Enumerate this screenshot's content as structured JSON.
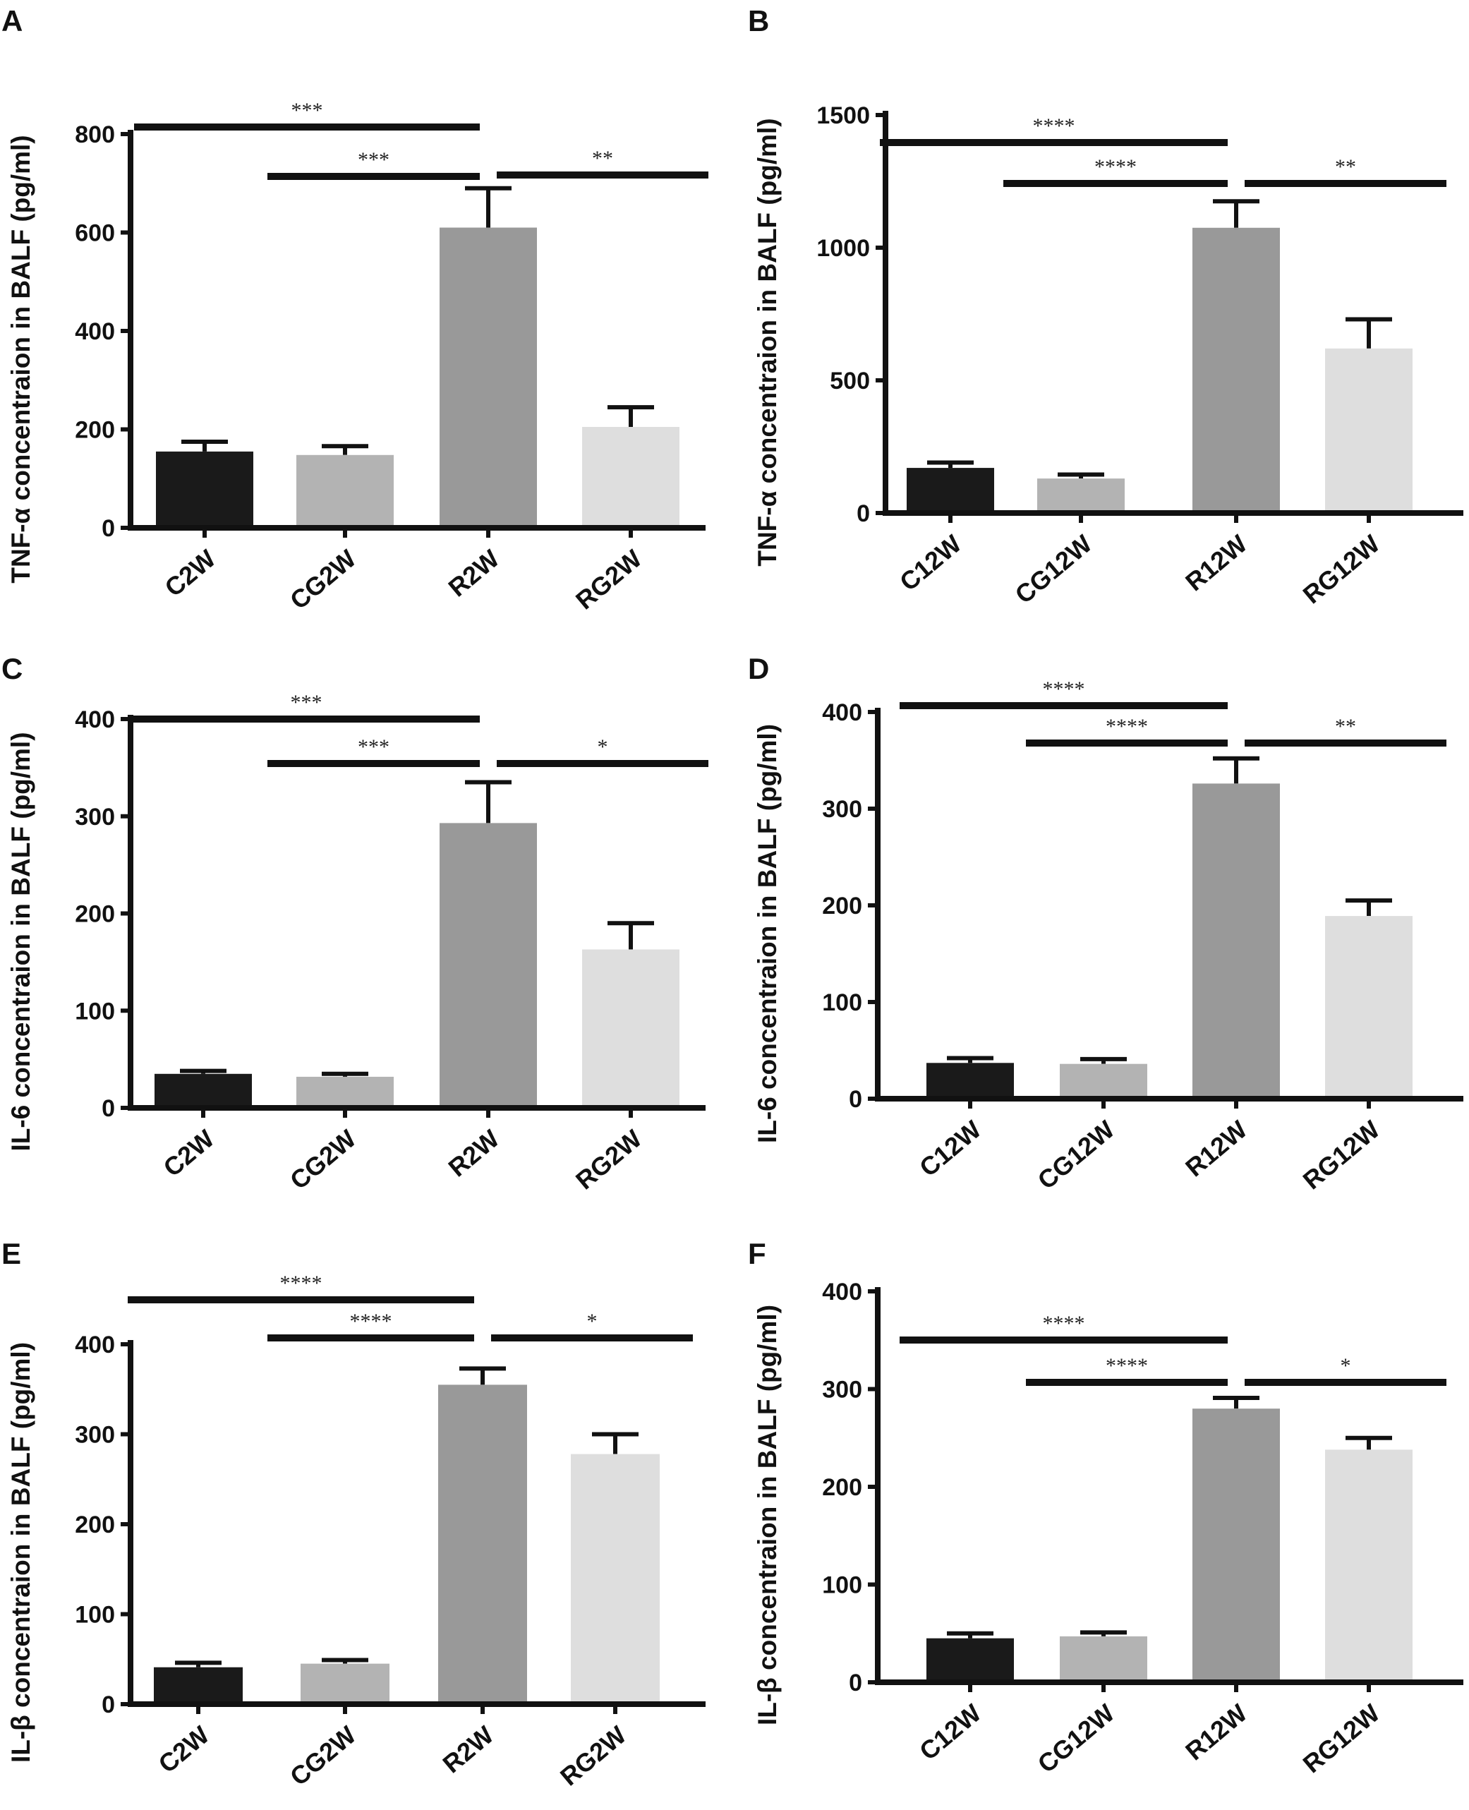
{
  "chart_data": [
    {
      "panel": "A",
      "type": "bar",
      "ylabel": "TNF-α concentraion in BALF (pg/ml)",
      "categories": [
        "C2W",
        "CG2W",
        "R2W",
        "RG2W"
      ],
      "values": [
        155,
        148,
        610,
        205
      ],
      "errors": [
        20,
        18,
        80,
        40
      ],
      "ylim": [
        0,
        800
      ],
      "yticks": [
        "0",
        "200",
        "400",
        "600",
        "800"
      ],
      "colors": [
        "#1a1a1a",
        "#b3b3b3",
        "#999999",
        "#dedede"
      ],
      "significance": [
        {
          "from": 0,
          "to": 2,
          "label": "***"
        },
        {
          "from": 1,
          "to": 2,
          "label": "***"
        },
        {
          "from": 2,
          "to": 3,
          "label": "**"
        }
      ]
    },
    {
      "panel": "B",
      "type": "bar",
      "ylabel": "TNF-α concentraion in BALF (pg/ml)",
      "categories": [
        "C12W",
        "CG12W",
        "R12W",
        "RG12W"
      ],
      "values": [
        170,
        130,
        1075,
        620
      ],
      "errors": [
        20,
        15,
        100,
        110
      ],
      "ylim": [
        0,
        1500
      ],
      "yticks": [
        "0",
        "500",
        "1000",
        "1500"
      ],
      "colors": [
        "#1a1a1a",
        "#b3b3b3",
        "#999999",
        "#dedede"
      ],
      "significance": [
        {
          "from": 0,
          "to": 2,
          "label": "****"
        },
        {
          "from": 1,
          "to": 2,
          "label": "****"
        },
        {
          "from": 2,
          "to": 3,
          "label": "**"
        }
      ]
    },
    {
      "panel": "C",
      "type": "bar",
      "ylabel": "IL-6 concentraion in BALF (pg/ml)",
      "categories": [
        "C2W",
        "CG2W",
        "R2W",
        "RG2W"
      ],
      "values": [
        35,
        32,
        293,
        163
      ],
      "errors": [
        3,
        3,
        42,
        27
      ],
      "ylim": [
        0,
        400
      ],
      "yticks": [
        "0",
        "100",
        "200",
        "300",
        "400"
      ],
      "colors": [
        "#1a1a1a",
        "#b3b3b3",
        "#999999",
        "#dedede"
      ],
      "significance": [
        {
          "from": 0,
          "to": 2,
          "label": "***"
        },
        {
          "from": 1,
          "to": 2,
          "label": "***"
        },
        {
          "from": 2,
          "to": 3,
          "label": "*"
        }
      ]
    },
    {
      "panel": "D",
      "type": "bar",
      "ylabel": "IL-6 concentraion in BALF (pg/ml)",
      "categories": [
        "C12W",
        "CG12W",
        "R12W",
        "RG12W"
      ],
      "values": [
        37,
        36,
        326,
        189
      ],
      "errors": [
        5,
        5,
        26,
        16
      ],
      "ylim": [
        0,
        400
      ],
      "yticks": [
        "0",
        "100",
        "200",
        "300",
        "400"
      ],
      "colors": [
        "#1a1a1a",
        "#b3b3b3",
        "#999999",
        "#dedede"
      ],
      "significance": [
        {
          "from": 0,
          "to": 2,
          "label": "****"
        },
        {
          "from": 1,
          "to": 2,
          "label": "****"
        },
        {
          "from": 2,
          "to": 3,
          "label": "**"
        }
      ]
    },
    {
      "panel": "E",
      "type": "bar",
      "ylabel": "IL-β concentraion in BALF (pg/ml)",
      "categories": [
        "C2W",
        "CG2W",
        "R2W",
        "RG2W"
      ],
      "values": [
        41,
        45,
        355,
        278
      ],
      "errors": [
        5,
        4,
        18,
        22
      ],
      "ylim": [
        0,
        400
      ],
      "yticks": [
        "0",
        "100",
        "200",
        "300",
        "400"
      ],
      "colors": [
        "#1a1a1a",
        "#b3b3b3",
        "#999999",
        "#dedede"
      ],
      "significance": [
        {
          "from": 0,
          "to": 2,
          "label": "****"
        },
        {
          "from": 1,
          "to": 2,
          "label": "****"
        },
        {
          "from": 2,
          "to": 3,
          "label": "*"
        }
      ]
    },
    {
      "panel": "F",
      "type": "bar",
      "ylabel": "IL-β concentraion in BALF (pg/ml)",
      "categories": [
        "C12W",
        "CG12W",
        "R12W",
        "RG12W"
      ],
      "values": [
        45,
        47,
        280,
        238
      ],
      "errors": [
        5,
        4,
        11,
        12
      ],
      "ylim": [
        0,
        400
      ],
      "yticks": [
        "0",
        "100",
        "200",
        "300",
        "400"
      ],
      "colors": [
        "#1a1a1a",
        "#b3b3b3",
        "#999999",
        "#dedede"
      ],
      "significance": [
        {
          "from": 0,
          "to": 2,
          "label": "****"
        },
        {
          "from": 1,
          "to": 2,
          "label": "****"
        },
        {
          "from": 2,
          "to": 3,
          "label": "*"
        }
      ]
    }
  ]
}
